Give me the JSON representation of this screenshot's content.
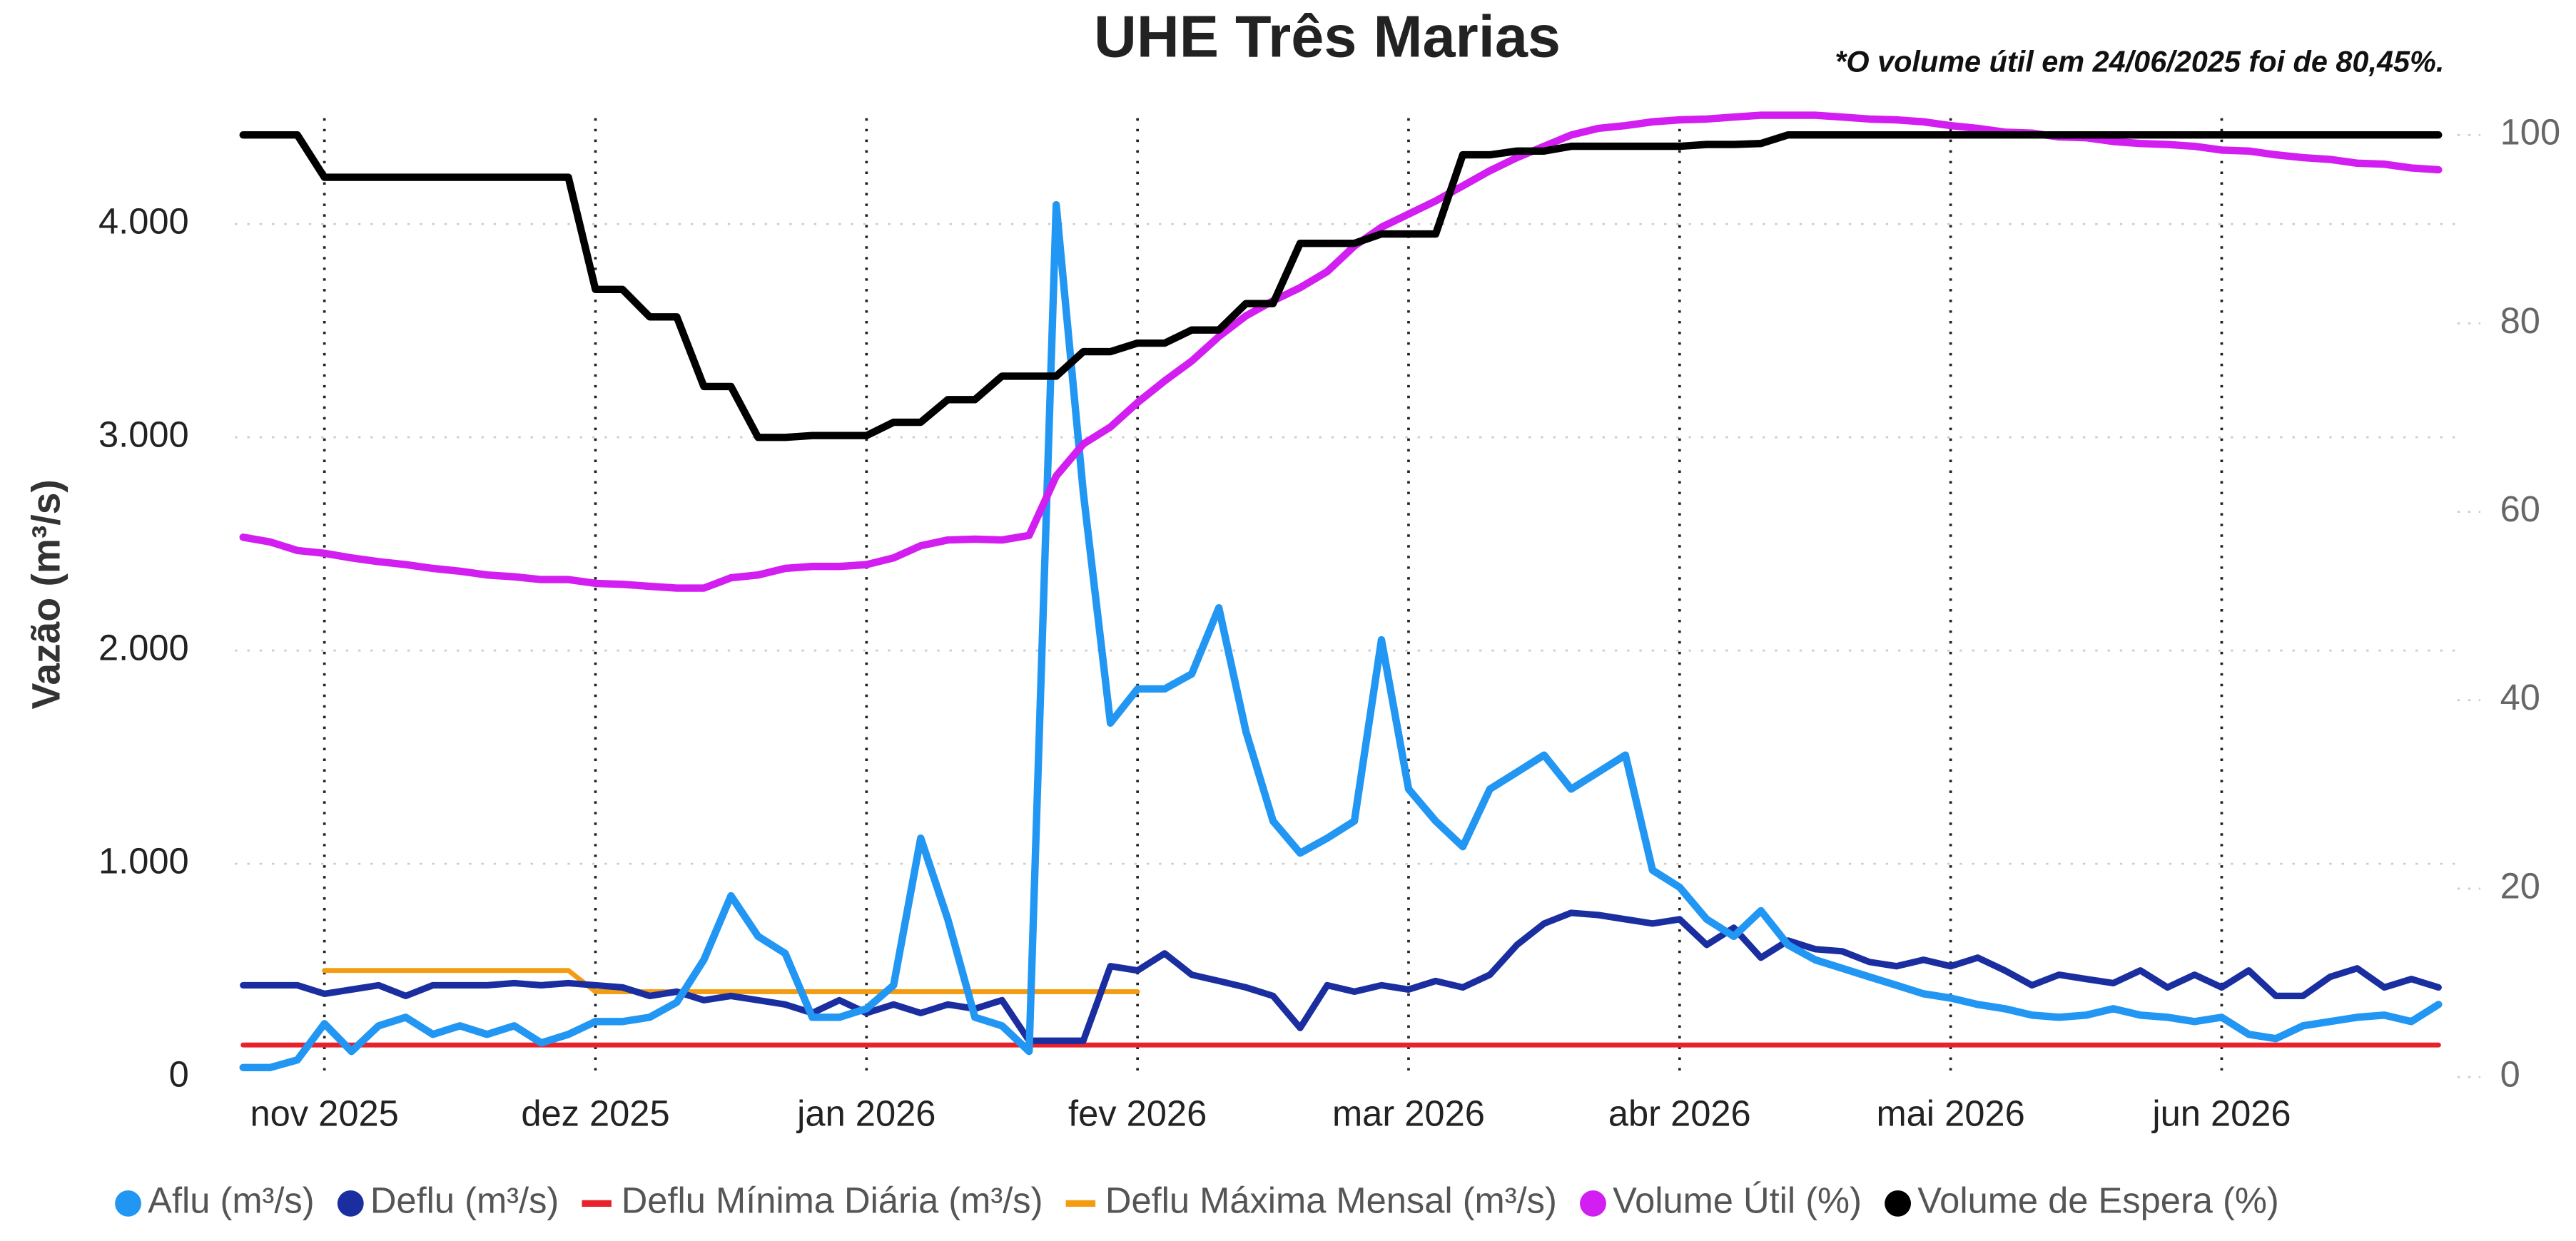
{
  "chart_data": {
    "type": "line",
    "title": "UHE Três Marias",
    "note": "*O volume útil em 24/06/2025 foi de 80,45%.",
    "ylabel": "Vazão (m³/s)",
    "categories": [
      null,
      null,
      null,
      "nov 2025",
      null,
      null,
      null,
      null,
      null,
      null,
      null,
      null,
      null,
      "dez 2025",
      null,
      null,
      null,
      null,
      null,
      null,
      null,
      null,
      null,
      "jan 2026",
      null,
      null,
      null,
      null,
      null,
      null,
      null,
      null,
      null,
      "fev 2026",
      null,
      null,
      null,
      null,
      null,
      null,
      null,
      null,
      null,
      "mar 2026",
      null,
      null,
      null,
      null,
      null,
      null,
      null,
      null,
      null,
      "abr 2026",
      null,
      null,
      null,
      null,
      null,
      null,
      null,
      null,
      null,
      "mai 2026",
      null,
      null,
      null,
      null,
      null,
      null,
      null,
      null,
      null,
      "jun 2026",
      null,
      null,
      null,
      null,
      null,
      null,
      null,
      null
    ],
    "ylim": [
      0,
      4550
    ],
    "yticks": [
      0,
      {
        "value": 1000,
        "label": "1.000"
      },
      {
        "value": 2000,
        "label": "2.000"
      },
      {
        "value": 3000,
        "label": "3.000"
      },
      {
        "value": 4000,
        "label": "4.000"
      }
    ],
    "y2lim": [
      0,
      103
    ],
    "y2ticks": [
      0,
      20,
      40,
      60,
      80,
      100
    ],
    "grid": true,
    "legend": "bottom",
    "series": [
      {
        "name": "Aflu (m³/s)",
        "color": "#2196f3",
        "legend_marker": "circle",
        "values": [
          45,
          45,
          80,
          250,
          120,
          240,
          280,
          200,
          240,
          200,
          240,
          160,
          200,
          260,
          260,
          280,
          350,
          550,
          850,
          660,
          580,
          280,
          280,
          320,
          430,
          1120,
          740,
          280,
          240,
          120,
          4090,
          2740,
          1660,
          1820,
          1820,
          1890,
          2200,
          1620,
          1200,
          1050,
          1120,
          1200,
          2050,
          1350,
          1200,
          1080,
          1350,
          1430,
          1510,
          1350,
          1430,
          1510,
          970,
          890,
          740,
          660,
          780,
          620,
          550,
          510,
          470,
          430,
          390,
          370,
          340,
          320,
          290,
          280,
          290,
          320,
          290,
          280,
          260,
          280,
          200,
          180,
          240,
          260,
          280,
          290,
          260,
          340
        ]
      },
      {
        "name": "Deflu (m³/s)",
        "color": "#1a2ea0",
        "legend_marker": "circle",
        "values": [
          430,
          430,
          430,
          390,
          410,
          430,
          380,
          430,
          430,
          430,
          440,
          430,
          440,
          430,
          420,
          380,
          400,
          360,
          380,
          360,
          340,
          300,
          360,
          300,
          340,
          300,
          340,
          320,
          360,
          170,
          170,
          170,
          520,
          500,
          580,
          480,
          450,
          420,
          380,
          230,
          430,
          400,
          430,
          410,
          450,
          420,
          480,
          620,
          720,
          770,
          760,
          740,
          720,
          740,
          620,
          700,
          560,
          640,
          600,
          590,
          540,
          520,
          550,
          520,
          560,
          500,
          430,
          480,
          460,
          440,
          500,
          420,
          480,
          420,
          500,
          380,
          380,
          470,
          510,
          420,
          460,
          420
        ]
      },
      {
        "name": "Deflu Mínima Diária (m³/s)",
        "color": "#e8212a",
        "legend_marker": "line",
        "values": [
          150,
          150,
          150,
          150,
          150,
          150,
          150,
          150,
          150,
          150,
          150,
          150,
          150,
          150,
          150,
          150,
          150,
          150,
          150,
          150,
          150,
          150,
          150,
          150,
          150,
          150,
          150,
          150,
          150,
          150,
          150,
          150,
          150,
          150,
          150,
          150,
          150,
          150,
          150,
          150,
          150,
          150,
          150,
          150,
          150,
          150,
          150,
          150,
          150,
          150,
          150,
          150,
          150,
          150,
          150,
          150,
          150,
          150,
          150,
          150,
          150,
          150,
          150,
          150,
          150,
          150,
          150,
          150,
          150,
          150,
          150,
          150,
          150,
          150,
          150,
          150,
          150,
          150,
          150,
          150,
          150,
          150
        ]
      },
      {
        "name": "Deflu Máxima Mensal (m³/s)",
        "color": "#f39c12",
        "legend_marker": "line",
        "values": [
          null,
          null,
          null,
          500,
          500,
          500,
          500,
          500,
          500,
          500,
          500,
          500,
          500,
          400,
          400,
          400,
          400,
          400,
          400,
          400,
          400,
          400,
          400,
          400,
          400,
          400,
          400,
          400,
          400,
          400,
          400,
          400,
          400,
          400,
          null,
          null,
          null,
          null,
          null,
          null,
          null,
          null,
          null,
          null,
          null,
          null,
          null,
          null,
          null,
          null,
          null,
          null,
          null,
          null,
          null,
          null,
          null,
          null,
          null,
          null,
          null,
          null,
          null,
          null,
          null,
          null,
          null,
          null,
          null,
          null,
          null,
          null,
          null,
          null,
          null,
          null,
          null,
          null,
          null,
          null,
          null,
          null
        ]
      },
      {
        "name": "Volume Útil (%)",
        "color": "#d21ef0",
        "legend_marker": "circle",
        "axis": "y2",
        "values": [
          57.3,
          56.8,
          55.9,
          55.6,
          55.1,
          54.7,
          54.4,
          54.0,
          53.7,
          53.3,
          53.1,
          52.8,
          52.8,
          52.4,
          52.3,
          52.1,
          51.9,
          51.9,
          53.0,
          53.3,
          54.0,
          54.2,
          54.2,
          54.4,
          55.1,
          56.4,
          57.0,
          57.1,
          57.0,
          57.5,
          63.8,
          67.2,
          69.0,
          71.6,
          73.9,
          76.0,
          78.6,
          80.8,
          82.4,
          83.8,
          85.5,
          88.2,
          90.2,
          91.6,
          93.0,
          94.6,
          96.2,
          97.6,
          98.8,
          100.0,
          100.7,
          101.0,
          101.4,
          101.6,
          101.7,
          101.9,
          102.1,
          102.1,
          102.1,
          101.9,
          101.7,
          101.6,
          101.4,
          101.0,
          100.7,
          100.3,
          100.2,
          99.8,
          99.7,
          99.3,
          99.1,
          99.0,
          98.8,
          98.4,
          98.3,
          97.9,
          97.6,
          97.4,
          97.0,
          96.9,
          96.5,
          96.3
        ]
      },
      {
        "name": "Volume de Espera (%)",
        "color": "#000000",
        "legend_marker": "circle",
        "axis": "y2",
        "values": [
          100,
          100,
          100,
          95.5,
          95.5,
          95.5,
          95.5,
          95.5,
          95.5,
          95.5,
          95.5,
          95.5,
          95.5,
          83.6,
          83.6,
          80.7,
          80.7,
          73.3,
          73.3,
          67.9,
          67.9,
          68.1,
          68.1,
          68.1,
          69.5,
          69.5,
          71.9,
          71.9,
          74.4,
          74.4,
          74.4,
          77.0,
          77.0,
          77.9,
          77.9,
          79.3,
          79.3,
          82.1,
          82.1,
          88.5,
          88.5,
          88.5,
          89.5,
          89.5,
          89.5,
          97.9,
          97.9,
          98.3,
          98.3,
          98.8,
          98.8,
          98.8,
          98.8,
          98.8,
          99.0,
          99.0,
          99.1,
          100,
          100,
          100,
          100,
          100,
          100,
          100,
          100,
          100,
          100,
          100,
          100,
          100,
          100,
          100,
          100,
          100,
          100,
          100,
          100,
          100,
          100,
          100,
          100,
          100
        ]
      }
    ]
  }
}
